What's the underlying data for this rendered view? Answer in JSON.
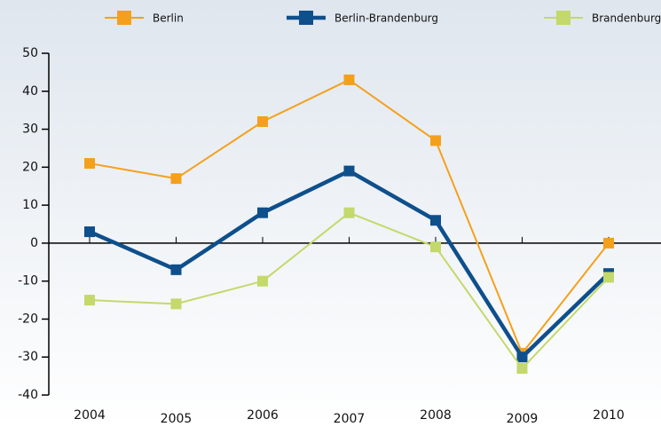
{
  "chart_data": {
    "type": "line",
    "categories": [
      "2004",
      "2005",
      "2006",
      "2007",
      "2008",
      "2009",
      "2010"
    ],
    "series": [
      {
        "name": "Berlin",
        "color": "#f5a01c",
        "values": [
          21,
          17,
          32,
          43,
          27,
          -29,
          0
        ]
      },
      {
        "name": "Berlin-Brandenburg",
        "color": "#0e4f8c",
        "values": [
          3,
          -7,
          8,
          19,
          6,
          -30,
          -8
        ]
      },
      {
        "name": "Brandenburg",
        "color": "#c3d96b",
        "values": [
          -15,
          -16,
          -10,
          8,
          -1,
          -33,
          -9
        ]
      }
    ],
    "ylim": [
      -40,
      50
    ],
    "yticks": [
      -40,
      -30,
      -20,
      -10,
      0,
      10,
      20,
      30,
      40,
      50
    ]
  }
}
